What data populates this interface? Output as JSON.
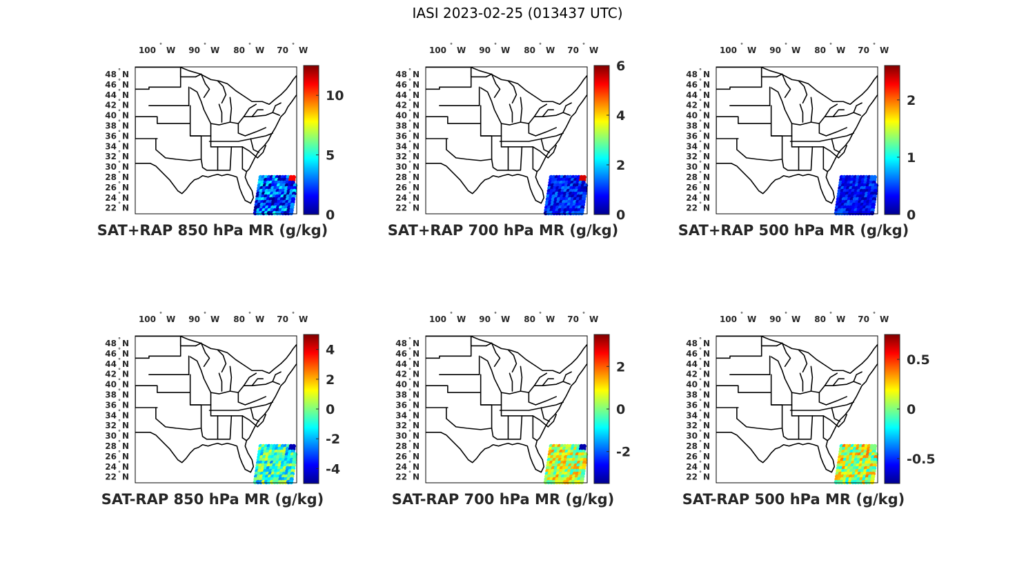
{
  "figure_title": "IASI 2023-02-25 (013437 UTC)",
  "lon_ticks": [
    {
      "value": "100",
      "dir": "W"
    },
    {
      "value": "90",
      "dir": "W"
    },
    {
      "value": "80",
      "dir": "W"
    },
    {
      "value": "70",
      "dir": "W"
    }
  ],
  "lat_ticks": [
    {
      "value": "48",
      "dir": "N"
    },
    {
      "value": "46",
      "dir": "N"
    },
    {
      "value": "44",
      "dir": "N"
    },
    {
      "value": "42",
      "dir": "N"
    },
    {
      "value": "40",
      "dir": "N"
    },
    {
      "value": "38",
      "dir": "N"
    },
    {
      "value": "36",
      "dir": "N"
    },
    {
      "value": "34",
      "dir": "N"
    },
    {
      "value": "32",
      "dir": "N"
    },
    {
      "value": "30",
      "dir": "N"
    },
    {
      "value": "28",
      "dir": "N"
    },
    {
      "value": "26",
      "dir": "N"
    },
    {
      "value": "24",
      "dir": "N"
    },
    {
      "value": "22",
      "dir": "N"
    }
  ],
  "colormap": "jet",
  "panels": [
    {
      "id": "sat-rap-850",
      "title": "SAT+RAP 850 hPa MR (g/kg)",
      "clim": [
        0,
        12.5
      ],
      "colorbar_ticks": [
        "0",
        "5",
        "10"
      ],
      "colorbar_values": [
        0,
        5,
        10
      ],
      "swath_base_value": 2.5,
      "swath_variability": 2.5,
      "corner_value": 11
    },
    {
      "id": "sat-rap-700",
      "title": "SAT+RAP 700 hPa MR (g/kg)",
      "clim": [
        0,
        6
      ],
      "colorbar_ticks": [
        "0",
        "2",
        "4",
        "6"
      ],
      "colorbar_values": [
        0,
        2,
        4,
        6
      ],
      "swath_base_value": 0.9,
      "swath_variability": 0.7,
      "corner_value": 5.5
    },
    {
      "id": "sat-rap-500",
      "title": "SAT+RAP 500 hPa MR (g/kg)",
      "clim": [
        0,
        2.6
      ],
      "colorbar_ticks": [
        "0",
        "1",
        "2"
      ],
      "colorbar_values": [
        0,
        1,
        2
      ],
      "swath_base_value": 0.35,
      "swath_variability": 0.25,
      "corner_value": 0.6
    },
    {
      "id": "sat-minus-rap-850",
      "title": "SAT-RAP 850 hPa MR (g/kg)",
      "clim": [
        -5,
        5
      ],
      "colorbar_ticks": [
        "-4",
        "-2",
        "0",
        "2",
        "4"
      ],
      "colorbar_values": [
        -4,
        -2,
        0,
        2,
        4
      ],
      "swath_base_value": -0.8,
      "swath_variability": 1.8,
      "corner_value": -4.5
    },
    {
      "id": "sat-minus-rap-700",
      "title": "SAT-RAP 700 hPa MR (g/kg)",
      "clim": [
        -3.5,
        3.5
      ],
      "colorbar_ticks": [
        "-2",
        "0",
        "2"
      ],
      "colorbar_values": [
        -2,
        0,
        2
      ],
      "swath_base_value": 0.5,
      "swath_variability": 1.2,
      "corner_value": -3.2
    },
    {
      "id": "sat-minus-rap-500",
      "title": "SAT-RAP 500 hPa MR (g/kg)",
      "clim": [
        -0.75,
        0.75
      ],
      "colorbar_ticks": [
        "-0.5",
        "0",
        "0.5"
      ],
      "colorbar_values": [
        -0.5,
        0,
        0.5
      ],
      "swath_base_value": 0.1,
      "swath_variability": 0.3,
      "corner_value": 0.0
    }
  ]
}
